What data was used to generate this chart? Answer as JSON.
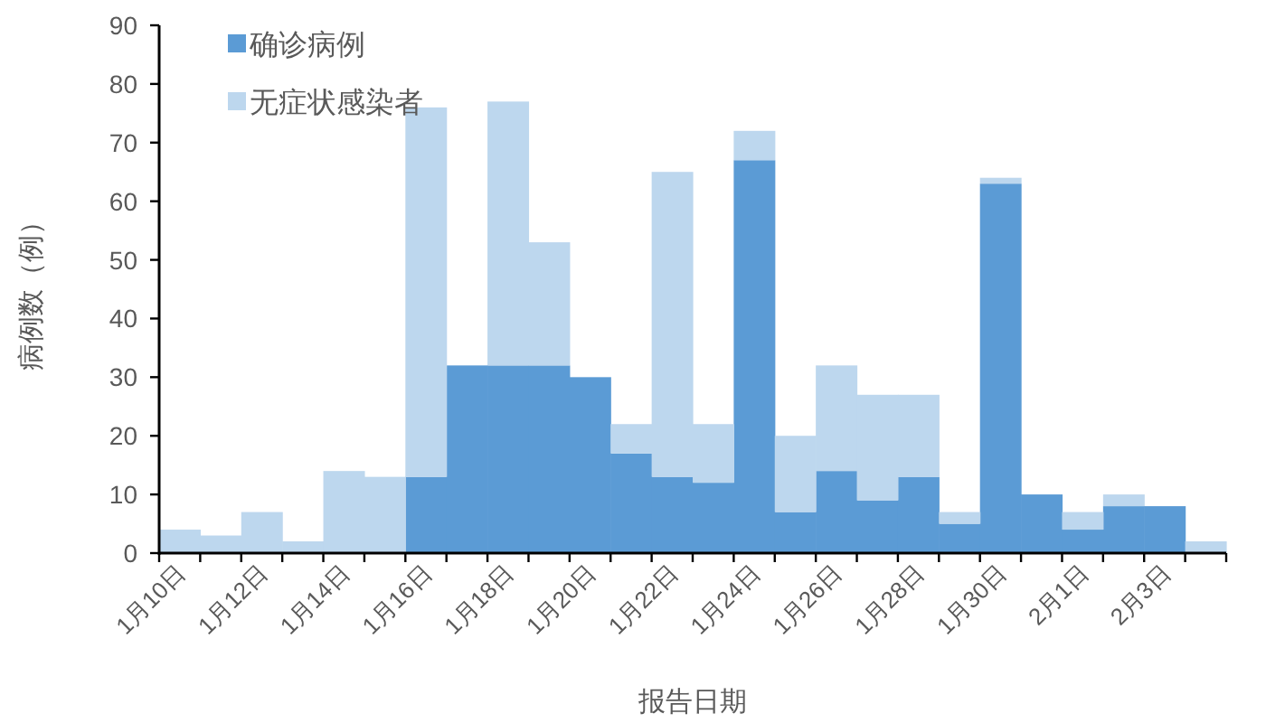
{
  "chart_data": {
    "type": "bar",
    "stacked": true,
    "xlabel": "报告日期",
    "ylabel": "病例数（例）",
    "categories": [
      "1月10日",
      null,
      "1月12日",
      null,
      "1月14日",
      null,
      "1月16日",
      null,
      "1月18日",
      null,
      "1月20日",
      null,
      "1月22日",
      null,
      "1月24日",
      null,
      "1月26日",
      null,
      "1月28日",
      null,
      "1月30日",
      null,
      "2月1日",
      null,
      "2月3日",
      null
    ],
    "series": [
      {
        "name": "确诊病例",
        "color": "#5b9bd5",
        "values": [
          0,
          0,
          0,
          0,
          0,
          0,
          13,
          32,
          32,
          32,
          30,
          17,
          13,
          12,
          67,
          7,
          14,
          9,
          13,
          5,
          63,
          10,
          4,
          8,
          8,
          0
        ]
      },
      {
        "name": "无症状感染者",
        "color": "#bdd7ee",
        "values": [
          4,
          3,
          7,
          2,
          14,
          13,
          63,
          0,
          45,
          21,
          0,
          5,
          52,
          10,
          5,
          13,
          18,
          18,
          14,
          2,
          1,
          0,
          3,
          2,
          0,
          2
        ]
      }
    ],
    "ylim": [
      0,
      90
    ],
    "yticks": [
      0,
      10,
      20,
      30,
      40,
      50,
      60,
      70,
      80,
      90
    ],
    "legend": "top left"
  }
}
